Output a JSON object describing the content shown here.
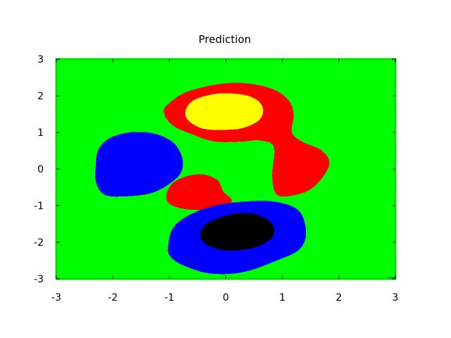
{
  "chart_data": {
    "type": "heatmap",
    "title": "Prediction",
    "xlabel": "",
    "ylabel": "",
    "xlim": [
      -3,
      3
    ],
    "ylim": [
      -3,
      3
    ],
    "x_ticks": [
      "-3",
      "-2",
      "-1",
      "0",
      "1",
      "2",
      "3"
    ],
    "y_ticks": [
      "3",
      "2",
      "1",
      "0",
      "-1",
      "-2",
      "-3"
    ],
    "grid": false,
    "legend": "none",
    "background_class": {
      "color": "#00ff00"
    },
    "regions": [
      {
        "class": "red",
        "color": "#ff0000",
        "outline": [
          [
            -1.1,
            1.55
          ],
          [
            -1.0,
            1.8
          ],
          [
            -0.7,
            2.1
          ],
          [
            -0.2,
            2.3
          ],
          [
            0.3,
            2.35
          ],
          [
            0.8,
            2.2
          ],
          [
            1.1,
            1.9
          ],
          [
            1.2,
            1.5
          ],
          [
            1.17,
            1.0
          ],
          [
            1.35,
            0.75
          ],
          [
            1.7,
            0.5
          ],
          [
            1.83,
            0.1
          ],
          [
            1.55,
            -0.5
          ],
          [
            1.2,
            -0.72
          ],
          [
            0.9,
            -0.7
          ],
          [
            0.82,
            -0.2
          ],
          [
            0.85,
            0.6
          ],
          [
            0.6,
            0.78
          ],
          [
            0.3,
            0.75
          ],
          [
            -0.2,
            0.75
          ],
          [
            -0.6,
            0.95
          ],
          [
            -0.95,
            1.2
          ]
        ]
      },
      {
        "class": "yellow",
        "color": "#ffff00",
        "outline": [
          [
            -0.72,
            1.55
          ],
          [
            -0.6,
            1.85
          ],
          [
            -0.3,
            2.02
          ],
          [
            0.05,
            2.07
          ],
          [
            0.45,
            1.97
          ],
          [
            0.65,
            1.7
          ],
          [
            0.6,
            1.35
          ],
          [
            0.3,
            1.12
          ],
          [
            -0.05,
            1.07
          ],
          [
            -0.4,
            1.1
          ],
          [
            -0.65,
            1.3
          ]
        ]
      },
      {
        "class": "blue",
        "color": "#0000ff",
        "outline": [
          [
            -2.3,
            0.15
          ],
          [
            -2.25,
            0.55
          ],
          [
            -2.05,
            0.85
          ],
          [
            -1.7,
            1.0
          ],
          [
            -1.3,
            0.98
          ],
          [
            -0.95,
            0.75
          ],
          [
            -0.78,
            0.35
          ],
          [
            -0.78,
            -0.05
          ],
          [
            -0.95,
            -0.35
          ],
          [
            -1.3,
            -0.65
          ],
          [
            -1.8,
            -0.75
          ],
          [
            -2.15,
            -0.7
          ],
          [
            -2.3,
            -0.35
          ]
        ]
      },
      {
        "class": "red",
        "color": "#ff0000",
        "outline": [
          [
            -1.05,
            -0.7
          ],
          [
            -0.95,
            -0.4
          ],
          [
            -0.7,
            -0.2
          ],
          [
            -0.4,
            -0.15
          ],
          [
            -0.15,
            -0.3
          ],
          [
            -0.05,
            -0.6
          ],
          [
            0.1,
            -0.9
          ],
          [
            -0.3,
            -1.1
          ],
          [
            -0.7,
            -1.1
          ],
          [
            -1.0,
            -0.95
          ]
        ]
      },
      {
        "class": "blue",
        "color": "#0000ff",
        "outline": [
          [
            -1.02,
            -2.1
          ],
          [
            -0.95,
            -1.65
          ],
          [
            -0.7,
            -1.3
          ],
          [
            -0.2,
            -1.0
          ],
          [
            0.4,
            -0.88
          ],
          [
            0.9,
            -0.9
          ],
          [
            1.3,
            -1.15
          ],
          [
            1.42,
            -1.75
          ],
          [
            1.3,
            -2.2
          ],
          [
            0.9,
            -2.5
          ],
          [
            0.3,
            -2.82
          ],
          [
            -0.3,
            -2.85
          ],
          [
            -0.8,
            -2.6
          ],
          [
            -1.0,
            -2.35
          ]
        ]
      },
      {
        "class": "black",
        "color": "#000000",
        "outline": [
          [
            -0.45,
            -1.85
          ],
          [
            -0.38,
            -1.55
          ],
          [
            -0.1,
            -1.32
          ],
          [
            0.3,
            -1.2
          ],
          [
            0.65,
            -1.3
          ],
          [
            0.85,
            -1.58
          ],
          [
            0.8,
            -1.9
          ],
          [
            0.5,
            -2.15
          ],
          [
            0.05,
            -2.23
          ],
          [
            -0.3,
            -2.1
          ]
        ]
      },
      {
        "class": "blue",
        "color": "#0000ff",
        "outline": [
          [
            2.83,
            -3.0
          ],
          [
            2.88,
            -2.96
          ],
          [
            3.0,
            -2.95
          ],
          [
            3.0,
            -3.0
          ]
        ]
      }
    ]
  }
}
